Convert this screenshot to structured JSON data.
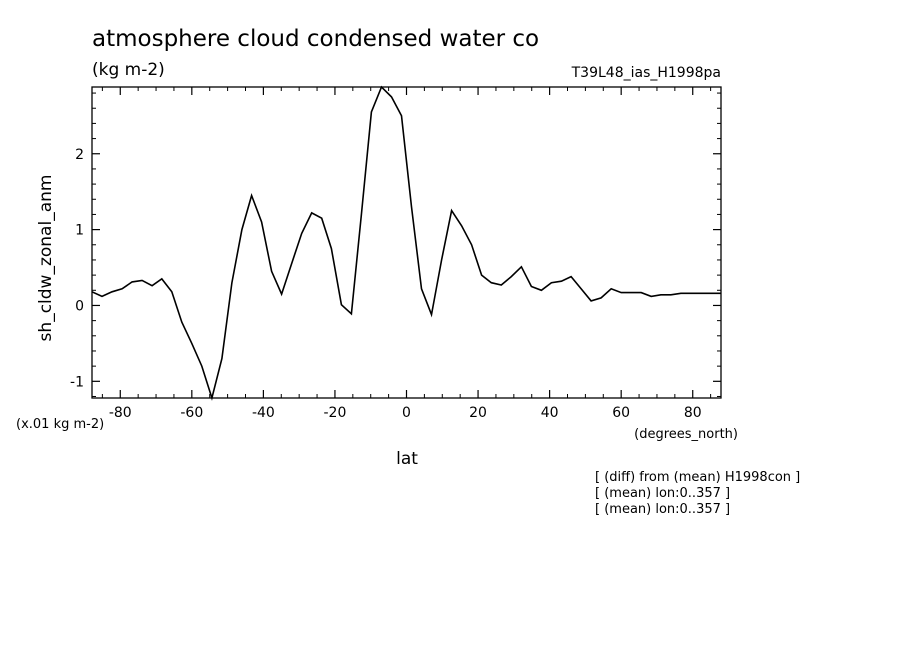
{
  "chart_data": {
    "type": "line",
    "title": "atmosphere cloud condensed water co",
    "units": "(kg m-2)",
    "run_id": "T39L48_ias_H1998pa",
    "xlabel": "lat",
    "xunits": "(degrees_north)",
    "ylabel": "sh_cldw_zonal_anm",
    "scale_note": "(x.01 kg m-2)",
    "xlim": [
      -87.9,
      87.9
    ],
    "ylim": [
      -1.22,
      2.88
    ],
    "xticks": [
      -80,
      -60,
      -40,
      -20,
      0,
      20,
      40,
      60,
      80
    ],
    "xtick_labels": [
      "-80",
      "-60",
      "-40",
      "-20",
      "0",
      "20",
      "40",
      "60",
      "80"
    ],
    "yticks": [
      -1,
      0,
      1,
      2
    ],
    "ytick_labels": [
      "-1",
      "0",
      "1",
      "2"
    ],
    "x": [
      -87.9,
      -85.1,
      -82.3,
      -79.5,
      -76.7,
      -73.9,
      -71.1,
      -68.4,
      -65.6,
      -62.8,
      -60.0,
      -57.2,
      -54.4,
      -51.6,
      -48.8,
      -46.0,
      -43.3,
      -40.5,
      -37.7,
      -34.9,
      -32.1,
      -29.3,
      -26.5,
      -23.7,
      -21.0,
      -18.2,
      -15.4,
      -12.6,
      -9.8,
      -7.0,
      -4.2,
      -1.4,
      1.4,
      4.2,
      7.0,
      9.8,
      12.6,
      15.4,
      18.2,
      21.0,
      23.7,
      26.5,
      29.3,
      32.1,
      34.9,
      37.7,
      40.5,
      43.3,
      46.0,
      48.8,
      51.6,
      54.4,
      57.2,
      60.0,
      62.8,
      65.6,
      68.4,
      71.1,
      73.9,
      76.7,
      79.5,
      82.3,
      85.1,
      87.9
    ],
    "series": [
      {
        "name": "sh_cldw_zonal_anm",
        "values": [
          0.18,
          0.12,
          0.18,
          0.22,
          0.31,
          0.33,
          0.26,
          0.35,
          0.18,
          -0.22,
          -0.5,
          -0.8,
          -1.22,
          -0.7,
          0.3,
          1.0,
          1.45,
          1.1,
          0.45,
          0.15,
          0.55,
          0.95,
          1.22,
          1.15,
          0.75,
          0.01,
          -0.11,
          1.2,
          2.55,
          2.88,
          2.75,
          2.5,
          1.3,
          0.22,
          -0.12,
          0.6,
          1.25,
          1.05,
          0.8,
          0.4,
          0.3,
          0.27,
          0.38,
          0.51,
          0.25,
          0.2,
          0.3,
          0.32,
          0.38,
          0.22,
          0.06,
          0.1,
          0.22,
          0.17,
          0.17,
          0.17,
          0.12,
          0.14,
          0.14,
          0.16,
          0.16,
          0.16,
          0.16,
          0.16
        ]
      }
    ],
    "grid": false
  },
  "annotations": [
    "[ (diff) from (mean) H1998con ]",
    "[ (mean) lon:0..357 ]",
    "[ (mean) lon:0..357 ]"
  ],
  "colors": {
    "line": "#000000",
    "background": "#ffffff"
  }
}
